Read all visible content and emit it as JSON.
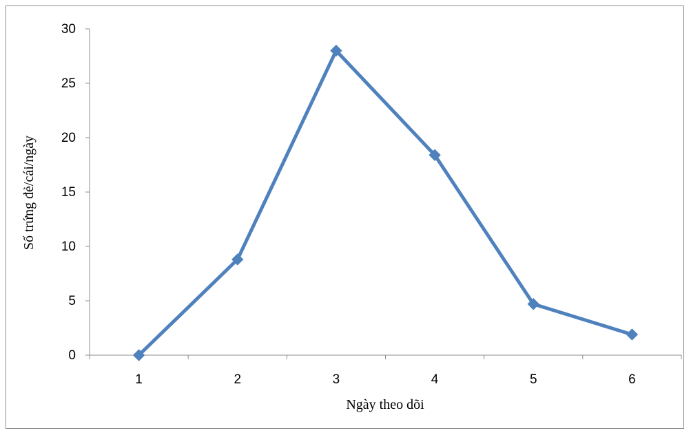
{
  "chart_data": {
    "type": "line",
    "title": "",
    "xlabel": "Ngày theo dõi",
    "ylabel": "Số trứng đẻ/cái/ngày",
    "categories": [
      "1",
      "2",
      "3",
      "4",
      "5",
      "6"
    ],
    "series": [
      {
        "values": [
          0,
          8.8,
          28,
          18.4,
          4.7,
          1.9
        ]
      }
    ],
    "ylim": [
      0,
      30
    ],
    "yticks": [
      "0",
      "5",
      "10",
      "15",
      "20",
      "25",
      "30"
    ],
    "grid": false,
    "legend": "none",
    "marker": "diamond",
    "colors": {
      "series": "#4F81BD",
      "axis": "#8c8c8c"
    }
  }
}
